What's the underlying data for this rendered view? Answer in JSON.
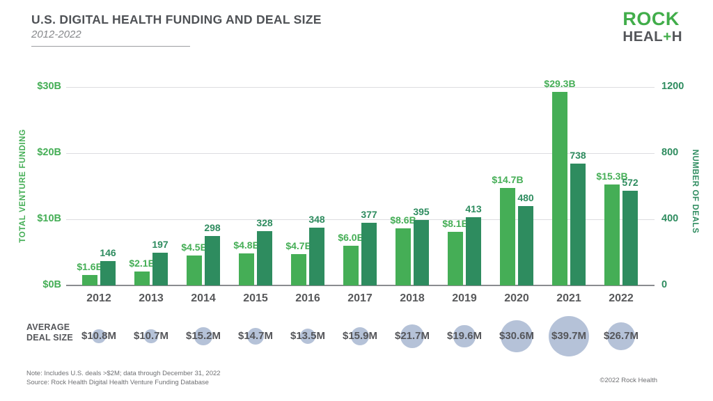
{
  "header": {
    "title": "U.S. DIGITAL HEALTH FUNDING AND DEAL SIZE",
    "subtitle": "2012-2022"
  },
  "logo": {
    "rock": "ROCK",
    "heal": "HEAL",
    "plus": "+",
    "h": "H"
  },
  "colors": {
    "funding_green": "#45ae56",
    "deals_green": "#2e8c5f",
    "bubble_blue": "#b5c2d8",
    "logo_green": "#41ad4a",
    "text_dark": "#55565a",
    "gridline": "#dcdde0",
    "baseline": "#8a8c8f"
  },
  "chart_data": {
    "type": "bar",
    "title": "U.S. DIGITAL HEALTH FUNDING AND DEAL SIZE",
    "subtitle": "2012-2022",
    "categories": [
      "2012",
      "2013",
      "2014",
      "2015",
      "2016",
      "2017",
      "2018",
      "2019",
      "2020",
      "2021",
      "2022"
    ],
    "series": [
      {
        "name": "Total Venture Funding",
        "unit": "$B",
        "values": [
          1.6,
          2.1,
          4.5,
          4.8,
          4.7,
          6.0,
          8.6,
          8.1,
          14.7,
          29.3,
          15.3
        ],
        "labels": [
          "$1.6B",
          "$2.1B",
          "$4.5B",
          "$4.8B",
          "$4.7B",
          "$6.0B",
          "$8.6B",
          "$8.1B",
          "$14.7B",
          "$29.3B",
          "$15.3B"
        ],
        "color": "#45ae56"
      },
      {
        "name": "Number of Deals",
        "unit": "deals",
        "values": [
          146,
          197,
          298,
          328,
          348,
          377,
          395,
          413,
          480,
          738,
          572
        ],
        "labels": [
          "146",
          "197",
          "298",
          "328",
          "348",
          "377",
          "395",
          "413",
          "480",
          "738",
          "572"
        ],
        "color": "#2e8c5f"
      },
      {
        "name": "Average Deal Size",
        "unit": "$M",
        "values": [
          10.8,
          10.7,
          15.2,
          14.7,
          13.5,
          15.9,
          21.7,
          19.6,
          30.6,
          39.7,
          26.7
        ],
        "labels": [
          "$10.8M",
          "$10.7M",
          "$15.2M",
          "$14.7M",
          "$13.5M",
          "$15.9M",
          "$21.7M",
          "$19.6M",
          "$30.6M",
          "$39.7M",
          "$26.7M"
        ],
        "color": "#b5c2d8"
      }
    ],
    "left_axis": {
      "label": "TOTAL VENTURE FUNDING",
      "ticks": [
        "$0B",
        "$10B",
        "$20B",
        "$30B"
      ],
      "tick_values": [
        0,
        10,
        20,
        30
      ],
      "range": [
        0,
        30
      ]
    },
    "right_axis": {
      "label": "NUMBER OF DEALS",
      "ticks": [
        "0",
        "400",
        "800",
        "1200"
      ],
      "tick_values": [
        0,
        400,
        800,
        1200
      ],
      "range": [
        0,
        1200
      ]
    },
    "grid": true,
    "legend": "none"
  },
  "deal_row": {
    "label_line1": "AVERAGE",
    "label_line2": "DEAL SIZE"
  },
  "footer": {
    "note": "Note: Includes U.S. deals >$2M; data through December 31, 2022",
    "source": "Rock Health Digital Health Venture Funding Database",
    "source_prefix": "Source: ",
    "copyright": "©2022 Rock Health"
  }
}
